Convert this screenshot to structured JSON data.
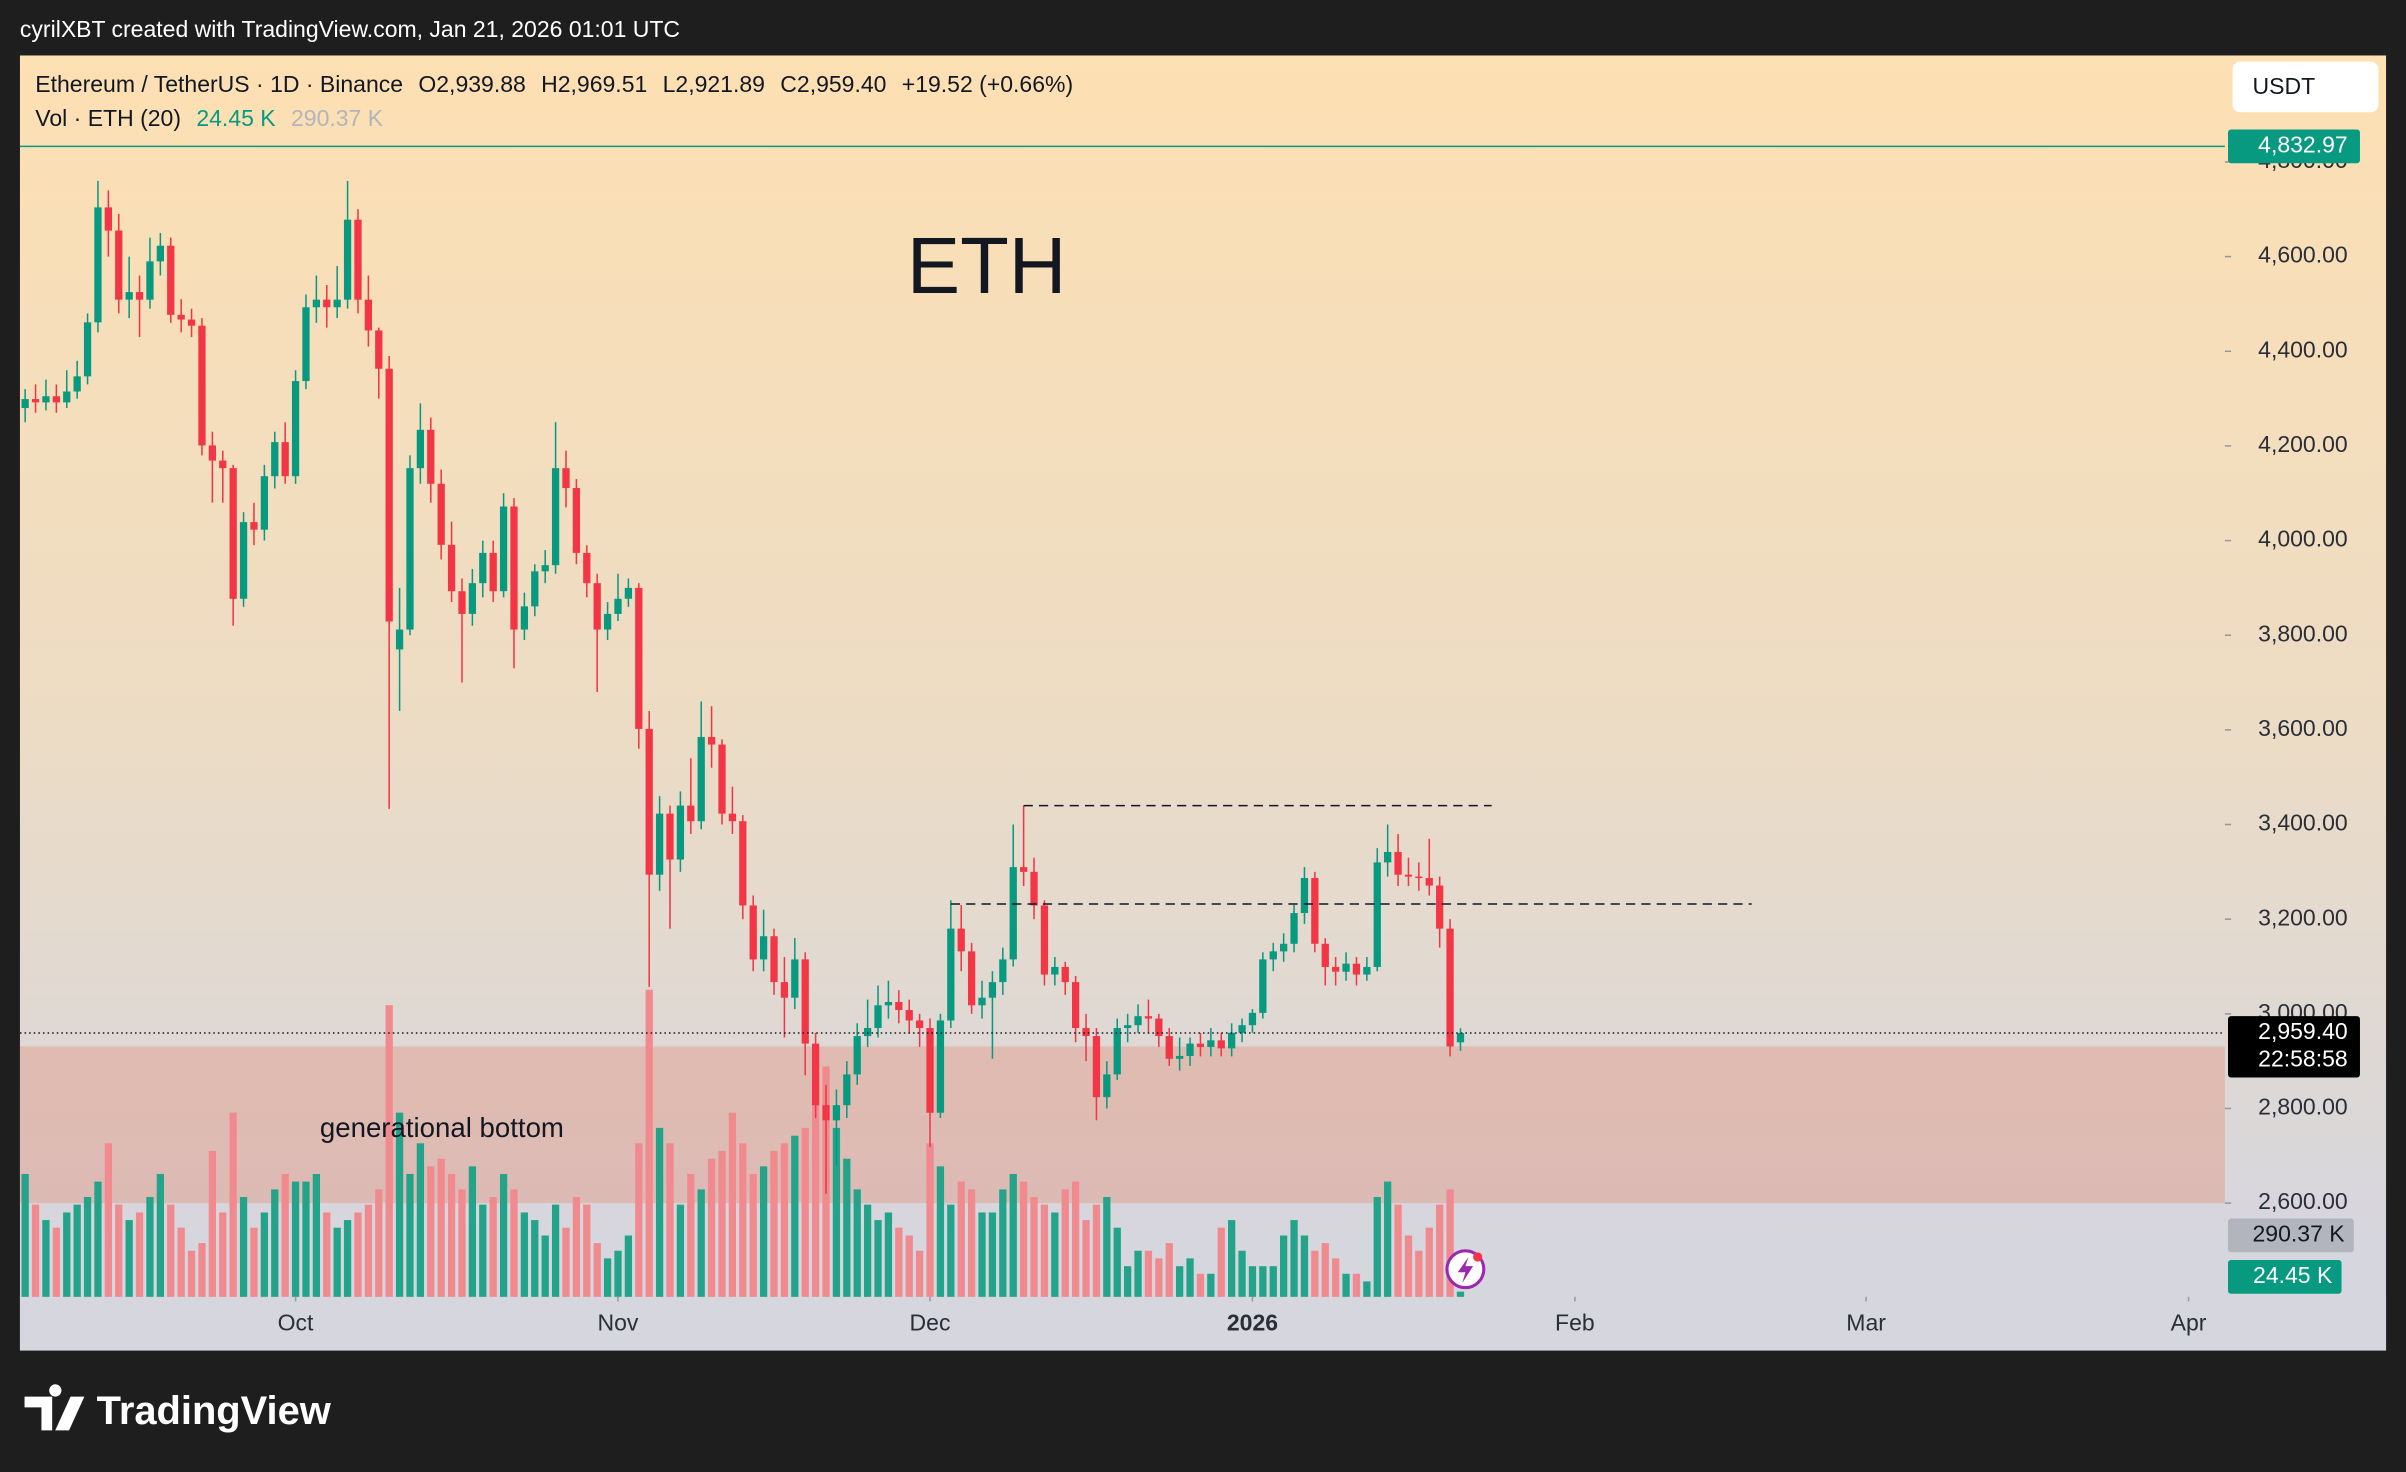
{
  "header": {
    "credit": "cyrilXBT created with TradingView.com, Jan 21, 2026 01:01 UTC",
    "currency": "USDT"
  },
  "footer": {
    "brand": "TradingView"
  },
  "chart_data": {
    "type": "candlestick",
    "title": "ETH",
    "legend": {
      "symbol": "Ethereum / TetherUS · 1D · Binance",
      "open": "O2,939.88",
      "high": "H2,969.51",
      "low": "L2,921.89",
      "close": "C2,959.40",
      "change": "+19.52 (+0.66%)",
      "volume_title": "Vol · ETH (20)"
    },
    "up_color": "#089981",
    "down_color": "#f23645",
    "xlim": [
      -0.5,
      211.5
    ],
    "xticks": [
      {
        "value": 26,
        "label": "Oct"
      },
      {
        "value": 57,
        "label": "Nov"
      },
      {
        "value": 87,
        "label": "Dec"
      },
      {
        "value": 118,
        "label": "2026"
      },
      {
        "value": 149,
        "label": "Feb"
      },
      {
        "value": 177,
        "label": "Mar"
      },
      {
        "value": 208,
        "label": "Apr"
      }
    ],
    "ylim": [
      2402,
      5025
    ],
    "yticks": [
      {
        "value": 2600,
        "label": "2,600.00"
      },
      {
        "value": 2800,
        "label": "2,800.00"
      },
      {
        "value": 3000,
        "label": "3,000.00"
      },
      {
        "value": 3200,
        "label": "3,200.00"
      },
      {
        "value": 3400,
        "label": "3,400.00"
      },
      {
        "value": 3600,
        "label": "3,600.00"
      },
      {
        "value": 3800,
        "label": "3,800.00"
      },
      {
        "value": 4000,
        "label": "4,000.00"
      },
      {
        "value": 4200,
        "label": "4,200.00"
      },
      {
        "value": 4400,
        "label": "4,400.00"
      },
      {
        "value": 4600,
        "label": "4,600.00"
      },
      {
        "value": 4800,
        "label": "4,800.00"
      }
    ],
    "ohlc": [
      [
        4280,
        4320,
        4250,
        4299
      ],
      [
        4299,
        4330,
        4270,
        4292
      ],
      [
        4292,
        4340,
        4275,
        4305
      ],
      [
        4305,
        4330,
        4270,
        4292
      ],
      [
        4292,
        4360,
        4280,
        4315
      ],
      [
        4315,
        4380,
        4300,
        4347
      ],
      [
        4347,
        4480,
        4330,
        4461
      ],
      [
        4461,
        4760,
        4440,
        4704
      ],
      [
        4704,
        4740,
        4600,
        4655
      ],
      [
        4655,
        4690,
        4480,
        4509
      ],
      [
        4509,
        4600,
        4470,
        4525
      ],
      [
        4525,
        4560,
        4430,
        4509
      ],
      [
        4509,
        4640,
        4490,
        4590
      ],
      [
        4590,
        4650,
        4560,
        4623
      ],
      [
        4623,
        4640,
        4460,
        4477
      ],
      [
        4477,
        4510,
        4440,
        4467
      ],
      [
        4467,
        4490,
        4430,
        4454
      ],
      [
        4454,
        4470,
        4180,
        4201
      ],
      [
        4201,
        4230,
        4080,
        4169
      ],
      [
        4169,
        4190,
        4080,
        4153
      ],
      [
        4153,
        4160,
        3820,
        3877
      ],
      [
        3877,
        4060,
        3860,
        4039
      ],
      [
        4039,
        4080,
        3990,
        4023
      ],
      [
        4023,
        4160,
        4000,
        4136
      ],
      [
        4136,
        4230,
        4110,
        4208
      ],
      [
        4208,
        4250,
        4120,
        4136
      ],
      [
        4136,
        4360,
        4120,
        4337
      ],
      [
        4337,
        4520,
        4320,
        4493
      ],
      [
        4493,
        4560,
        4460,
        4509
      ],
      [
        4509,
        4540,
        4450,
        4493
      ],
      [
        4493,
        4580,
        4470,
        4509
      ],
      [
        4509,
        4760,
        4490,
        4678
      ],
      [
        4678,
        4700,
        4480,
        4509
      ],
      [
        4509,
        4560,
        4410,
        4444
      ],
      [
        4444,
        4450,
        4300,
        4363
      ],
      [
        4363,
        4390,
        3433,
        3829
      ],
      [
        3770,
        3900,
        3640,
        3812
      ],
      [
        3812,
        4180,
        3800,
        4153
      ],
      [
        4153,
        4290,
        4120,
        4234
      ],
      [
        4234,
        4260,
        4080,
        4120
      ],
      [
        4120,
        4150,
        3960,
        3991
      ],
      [
        3991,
        4040,
        3870,
        3893
      ],
      [
        3893,
        3920,
        3700,
        3845
      ],
      [
        3845,
        3940,
        3820,
        3910
      ],
      [
        3910,
        4000,
        3880,
        3974
      ],
      [
        3974,
        4000,
        3870,
        3893
      ],
      [
        3893,
        4100,
        3880,
        4072
      ],
      [
        4072,
        4090,
        3730,
        3812
      ],
      [
        3812,
        3890,
        3790,
        3861
      ],
      [
        3861,
        3950,
        3840,
        3935
      ],
      [
        3935,
        3980,
        3910,
        3948
      ],
      [
        3948,
        4250,
        3930,
        4153
      ],
      [
        4153,
        4190,
        4070,
        4111
      ],
      [
        4111,
        4130,
        3950,
        3974
      ],
      [
        3974,
        3990,
        3880,
        3910
      ],
      [
        3910,
        3930,
        3680,
        3812
      ],
      [
        3812,
        3870,
        3790,
        3845
      ],
      [
        3845,
        3930,
        3830,
        3877
      ],
      [
        3877,
        3920,
        3860,
        3900
      ],
      [
        3900,
        3910,
        3560,
        3602
      ],
      [
        3602,
        3640,
        3057,
        3294
      ],
      [
        3294,
        3460,
        3260,
        3423
      ],
      [
        3423,
        3440,
        3180,
        3326
      ],
      [
        3326,
        3470,
        3300,
        3440
      ],
      [
        3440,
        3540,
        3380,
        3407
      ],
      [
        3407,
        3660,
        3390,
        3585
      ],
      [
        3585,
        3650,
        3520,
        3569
      ],
      [
        3569,
        3580,
        3400,
        3423
      ],
      [
        3423,
        3480,
        3380,
        3407
      ],
      [
        3407,
        3420,
        3200,
        3229
      ],
      [
        3229,
        3250,
        3090,
        3115
      ],
      [
        3115,
        3220,
        3090,
        3164
      ],
      [
        3164,
        3180,
        3040,
        3067
      ],
      [
        3067,
        3120,
        2950,
        3034
      ],
      [
        3034,
        3160,
        3010,
        3115
      ],
      [
        3115,
        3130,
        2870,
        2937
      ],
      [
        2937,
        2960,
        2780,
        2807
      ],
      [
        2807,
        2850,
        2620,
        2775
      ],
      [
        2775,
        2840,
        2680,
        2807
      ],
      [
        2807,
        2900,
        2780,
        2872
      ],
      [
        2872,
        2980,
        2850,
        2953
      ],
      [
        2953,
        3030,
        2930,
        2970
      ],
      [
        2970,
        3060,
        2950,
        3018
      ],
      [
        3018,
        3070,
        2990,
        3025
      ],
      [
        3025,
        3050,
        2980,
        3008
      ],
      [
        3008,
        3030,
        2960,
        2986
      ],
      [
        2986,
        3000,
        2930,
        2970
      ],
      [
        2970,
        2990,
        2719,
        2791
      ],
      [
        2791,
        3000,
        2780,
        2986
      ],
      [
        2986,
        3240,
        2970,
        3180
      ],
      [
        3180,
        3230,
        3090,
        3132
      ],
      [
        3132,
        3150,
        3000,
        3018
      ],
      [
        3018,
        3070,
        2990,
        3034
      ],
      [
        3034,
        3090,
        2905,
        3067
      ],
      [
        3067,
        3140,
        3040,
        3115
      ],
      [
        3115,
        3400,
        3100,
        3310
      ],
      [
        3310,
        3440,
        3270,
        3300
      ],
      [
        3300,
        3330,
        3200,
        3229
      ],
      [
        3229,
        3240,
        3060,
        3083
      ],
      [
        3083,
        3120,
        3060,
        3099
      ],
      [
        3099,
        3110,
        3040,
        3067
      ],
      [
        3067,
        3080,
        2940,
        2970
      ],
      [
        2970,
        3000,
        2900,
        2953
      ],
      [
        2953,
        2970,
        2775,
        2824
      ],
      [
        2824,
        2900,
        2800,
        2872
      ],
      [
        2872,
        2990,
        2860,
        2970
      ],
      [
        2970,
        3000,
        2940,
        2976
      ],
      [
        2976,
        3020,
        2960,
        2995
      ],
      [
        2995,
        3030,
        2960,
        2990
      ],
      [
        2990,
        3000,
        2930,
        2953
      ],
      [
        2953,
        2970,
        2890,
        2905
      ],
      [
        2905,
        2950,
        2880,
        2911
      ],
      [
        2911,
        2950,
        2890,
        2937
      ],
      [
        2937,
        2960,
        2910,
        2930
      ],
      [
        2930,
        2970,
        2910,
        2944
      ],
      [
        2944,
        2960,
        2910,
        2927
      ],
      [
        2927,
        2980,
        2910,
        2960
      ],
      [
        2960,
        2990,
        2940,
        2976
      ],
      [
        2976,
        3010,
        2960,
        3002
      ],
      [
        3002,
        3130,
        2990,
        3115
      ],
      [
        3115,
        3150,
        3090,
        3132
      ],
      [
        3132,
        3170,
        3110,
        3148
      ],
      [
        3148,
        3230,
        3130,
        3213
      ],
      [
        3213,
        3310,
        3190,
        3287
      ],
      [
        3287,
        3300,
        3130,
        3148
      ],
      [
        3148,
        3160,
        3060,
        3099
      ],
      [
        3099,
        3120,
        3060,
        3089
      ],
      [
        3089,
        3130,
        3070,
        3106
      ],
      [
        3106,
        3120,
        3060,
        3083
      ],
      [
        3083,
        3120,
        3070,
        3099
      ],
      [
        3099,
        3350,
        3090,
        3320
      ],
      [
        3320,
        3400,
        3290,
        3342
      ],
      [
        3342,
        3380,
        3270,
        3294
      ],
      [
        3294,
        3330,
        3270,
        3290
      ],
      [
        3290,
        3320,
        3260,
        3287
      ],
      [
        3287,
        3370,
        3250,
        3271
      ],
      [
        3271,
        3290,
        3140,
        3180
      ],
      [
        3180,
        3200,
        2910,
        2931
      ],
      [
        2939.88,
        2969.51,
        2921.89,
        2959.4
      ]
    ],
    "volume": {
      "up_color": "#22a38a",
      "down_color": "#f08a8f",
      "ylim": [
        0,
        5870000
      ],
      "values": [
        581000,
        436000,
        363000,
        327000,
        399000,
        436000,
        472000,
        545000,
        726000,
        436000,
        363000,
        399000,
        472000,
        581000,
        436000,
        327000,
        218000,
        254000,
        690000,
        399000,
        871000,
        472000,
        327000,
        399000,
        508000,
        581000,
        545000,
        545000,
        581000,
        399000,
        327000,
        363000,
        399000,
        436000,
        508000,
        1379000,
        871000,
        581000,
        726000,
        617000,
        653000,
        581000,
        508000,
        617000,
        436000,
        472000,
        581000,
        508000,
        399000,
        363000,
        290000,
        436000,
        327000,
        472000,
        436000,
        254000,
        182000,
        218000,
        290000,
        726000,
        1452000,
        799000,
        726000,
        436000,
        581000,
        508000,
        653000,
        690000,
        871000,
        726000,
        581000,
        617000,
        690000,
        726000,
        762000,
        799000,
        908000,
        1089000,
        799000,
        653000,
        508000,
        436000,
        363000,
        399000,
        327000,
        290000,
        218000,
        726000,
        617000,
        436000,
        545000,
        508000,
        399000,
        399000,
        508000,
        581000,
        545000,
        472000,
        436000,
        399000,
        508000,
        545000,
        363000,
        436000,
        472000,
        327000,
        145000,
        218000,
        218000,
        182000,
        254000,
        145000,
        182000,
        109000,
        109000,
        327000,
        363000,
        218000,
        145000,
        145000,
        145000,
        290000,
        363000,
        290000,
        218000,
        254000,
        182000,
        109000,
        109000,
        73000,
        472000,
        545000,
        436000,
        290000,
        218000,
        327000,
        436000,
        508000,
        24450
      ],
      "current": {
        "value": 24450,
        "label": "24.45 K"
      },
      "ma": {
        "value": 290370,
        "label": "290.37 K"
      }
    },
    "price_line": {
      "value": 4832.97,
      "label": "4,832.97",
      "color": "#089981"
    },
    "last_price": {
      "value": 2959.4,
      "label": "2,959.40",
      "countdown": "22:58:58"
    },
    "levels": [
      {
        "value": 3440,
        "from": 96,
        "to": 141
      },
      {
        "value": 3232,
        "from": 89,
        "to": 166
      }
    ],
    "zone": {
      "from": 2600,
      "to": 2931,
      "label": "generational bottom",
      "color": "#e39a86"
    }
  }
}
